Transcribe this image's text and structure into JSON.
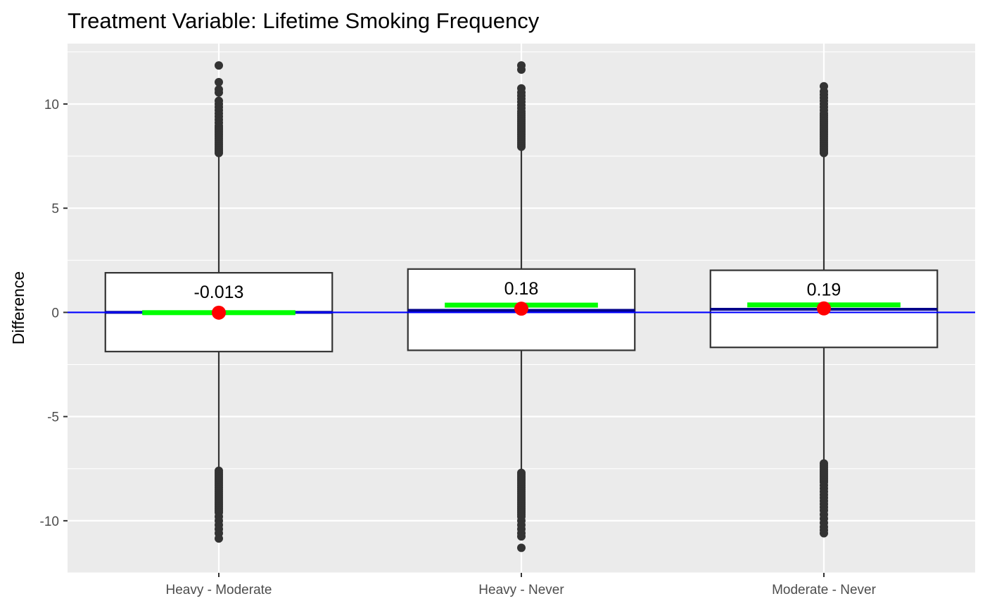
{
  "chart_data": {
    "type": "boxplot",
    "title": "Treatment Variable: Lifetime Smoking Frequency",
    "xlabel": "",
    "ylabel": "Difference",
    "ylim": [
      -12.5,
      12.9
    ],
    "yticks": [
      -10,
      -5,
      0,
      5,
      10
    ],
    "grid": true,
    "legend": "none",
    "reference_line": {
      "y": 0,
      "color": "#0000ff"
    },
    "colors": {
      "panel": "#ebebeb",
      "grid": "#ffffff",
      "box_fill": "#ffffff",
      "box_stroke": "#333333",
      "outlier": "#333333",
      "median": "#00008b",
      "mean_bar": "#00ff00",
      "mean_point": "#ff0000"
    },
    "categories": [
      "Heavy - Moderate",
      "Heavy - Never",
      "Moderate - Never"
    ],
    "boxes": [
      {
        "category": "Heavy - Moderate",
        "q1": -1.88,
        "median": 0.0,
        "q3": 1.9,
        "whisker_low": -7.55,
        "whisker_high": 7.6,
        "mean": -0.013,
        "mean_label": "-0.013",
        "outliers_low": [
          -7.6,
          -7.7,
          -7.8,
          -7.9,
          -8.0,
          -8.1,
          -8.2,
          -8.3,
          -8.4,
          -8.5,
          -8.6,
          -8.7,
          -8.8,
          -8.9,
          -9.0,
          -9.1,
          -9.2,
          -9.3,
          -9.4,
          -9.5,
          -9.6,
          -9.8,
          -10.0,
          -10.2,
          -10.4,
          -10.6,
          -10.85
        ],
        "outliers_high": [
          7.65,
          7.75,
          7.85,
          7.95,
          8.05,
          8.15,
          8.25,
          8.35,
          8.45,
          8.55,
          8.65,
          8.75,
          8.85,
          8.95,
          9.1,
          9.25,
          9.4,
          9.55,
          9.7,
          9.85,
          10.0,
          10.15,
          10.55,
          10.7,
          11.05,
          11.85
        ]
      },
      {
        "category": "Heavy - Never",
        "q1": -1.82,
        "median": 0.1,
        "q3": 2.08,
        "whisker_low": -7.65,
        "whisker_high": 7.9,
        "mean": 0.18,
        "mean_label": "0.18",
        "outliers_low": [
          -7.7,
          -7.8,
          -7.9,
          -8.0,
          -8.1,
          -8.2,
          -8.3,
          -8.4,
          -8.5,
          -8.6,
          -8.7,
          -8.8,
          -8.9,
          -9.0,
          -9.1,
          -9.2,
          -9.3,
          -9.4,
          -9.5,
          -9.6,
          -9.7,
          -9.8,
          -10.0,
          -10.2,
          -10.4,
          -10.6,
          -10.75,
          -11.3
        ],
        "outliers_high": [
          7.95,
          8.05,
          8.15,
          8.25,
          8.35,
          8.45,
          8.55,
          8.65,
          8.75,
          8.85,
          8.95,
          9.05,
          9.15,
          9.25,
          9.35,
          9.45,
          9.55,
          9.65,
          9.8,
          9.95,
          10.1,
          10.25,
          10.4,
          10.55,
          10.75,
          11.65,
          11.85
        ]
      },
      {
        "category": "Moderate - Never",
        "q1": -1.68,
        "median": 0.15,
        "q3": 2.02,
        "whisker_low": -7.2,
        "whisker_high": 7.6,
        "mean": 0.19,
        "mean_label": "0.19",
        "outliers_low": [
          -7.25,
          -7.35,
          -7.45,
          -7.55,
          -7.65,
          -7.75,
          -7.85,
          -7.95,
          -8.05,
          -8.15,
          -8.3,
          -8.45,
          -8.6,
          -8.75,
          -8.9,
          -9.05,
          -9.2,
          -9.35,
          -9.5,
          -9.7,
          -9.9,
          -10.1,
          -10.3,
          -10.45,
          -10.6
        ],
        "outliers_high": [
          7.65,
          7.75,
          7.85,
          7.95,
          8.05,
          8.15,
          8.25,
          8.35,
          8.45,
          8.55,
          8.65,
          8.75,
          8.85,
          8.95,
          9.05,
          9.15,
          9.25,
          9.35,
          9.45,
          9.55,
          9.7,
          9.85,
          10.0,
          10.15,
          10.3,
          10.45,
          10.6,
          10.85
        ]
      }
    ]
  }
}
